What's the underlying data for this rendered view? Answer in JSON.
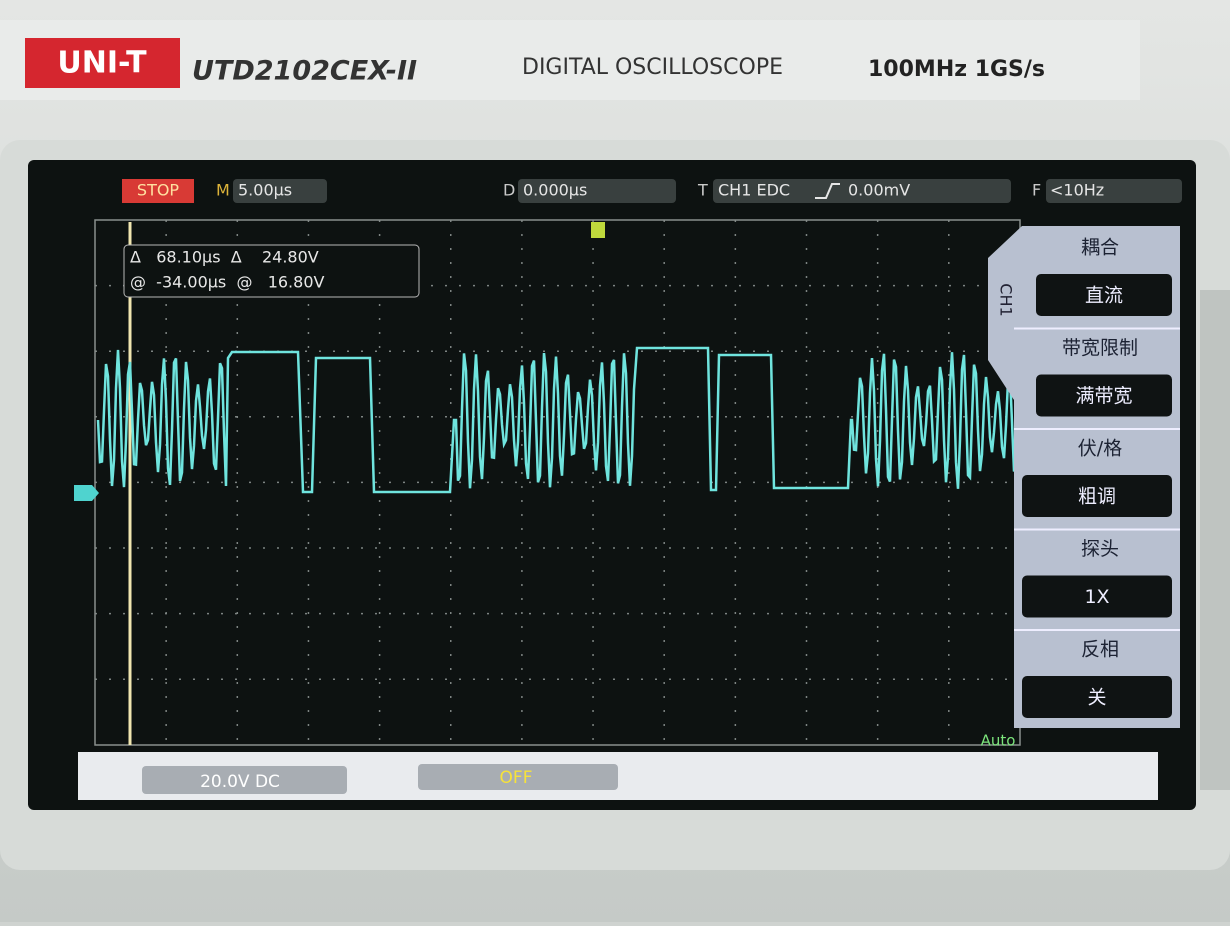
{
  "brand": {
    "logo": "UNI-T",
    "model": "UTD2102CEX-II",
    "description": "DIGITAL OSCILLOSCOPE",
    "spec": "100MHz 1GS/s"
  },
  "status_bar": {
    "run_state": "STOP",
    "timebase_label": "M",
    "timebase": "5.00µs",
    "delay_label": "D",
    "delay": "0.000µs",
    "trigger_label": "T",
    "trigger": "CH1 EDC",
    "trigger_level": "0.00mV",
    "freq_label": "F",
    "freq": "<10Hz"
  },
  "cursor_readout": {
    "row1": "Δ   68.10µs  Δ    24.80V",
    "row2": "@  -34.00µs  @   16.80V"
  },
  "menu": {
    "channel": "CH1",
    "items": [
      {
        "title": "耦合",
        "value": "直流"
      },
      {
        "title": "带宽限制",
        "value": "满带宽"
      },
      {
        "title": "伏/格",
        "value": "粗调"
      },
      {
        "title": "探头",
        "value": "1X"
      },
      {
        "title": "反相",
        "value": "关"
      }
    ]
  },
  "trigger_mode": "Auto",
  "bottom_bar": {
    "ch1_scale": "20.0V DC",
    "ch2_state": "OFF"
  }
}
